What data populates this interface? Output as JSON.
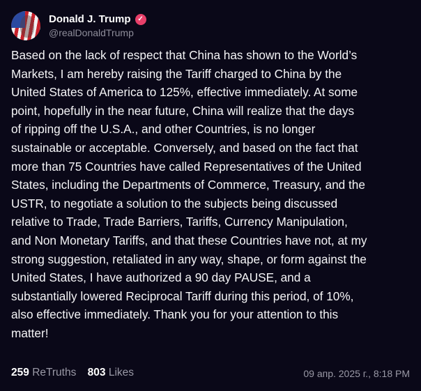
{
  "author": {
    "name": "Donald J. Trump",
    "handle": "@realDonaldTrump",
    "verified_icon": "verified-badge-icon",
    "badge_color": "#e8406a"
  },
  "post": {
    "lines": [
      "Based on the lack of respect that China has shown to the World’s",
      "Markets, I am hereby raising the Tariff charged to China by the",
      "United States of America to 125%, effective immediately. At some",
      "point, hopefully in the near future, China will realize that the days",
      "of ripping off the U.S.A., and other Countries, is no longer",
      "sustainable or acceptable. Conversely, and based on the fact that",
      "more than 75 Countries have called Representatives of the United",
      "States, including the Departments of Commerce, Treasury, and the",
      "USTR, to negotiate a solution to the subjects being discussed",
      "relative to Trade, Trade Barriers, Tariffs, Currency Manipulation,",
      "and Non Monetary Tariffs, and that these Countries have not, at my",
      "strong suggestion, retaliated in any way, shape, or form against the",
      "United States, I have authorized a 90 day PAUSE, and a",
      "substantially lowered Reciprocal Tariff during this period, of 10%,",
      "also effective immediately. Thank you for your attention to this",
      "matter!"
    ]
  },
  "footer": {
    "retruths_count": "259",
    "retruths_label": "ReTruths",
    "likes_count": "803",
    "likes_label": "Likes",
    "timestamp": "09 апр. 2025 г., 8:18 PM"
  }
}
